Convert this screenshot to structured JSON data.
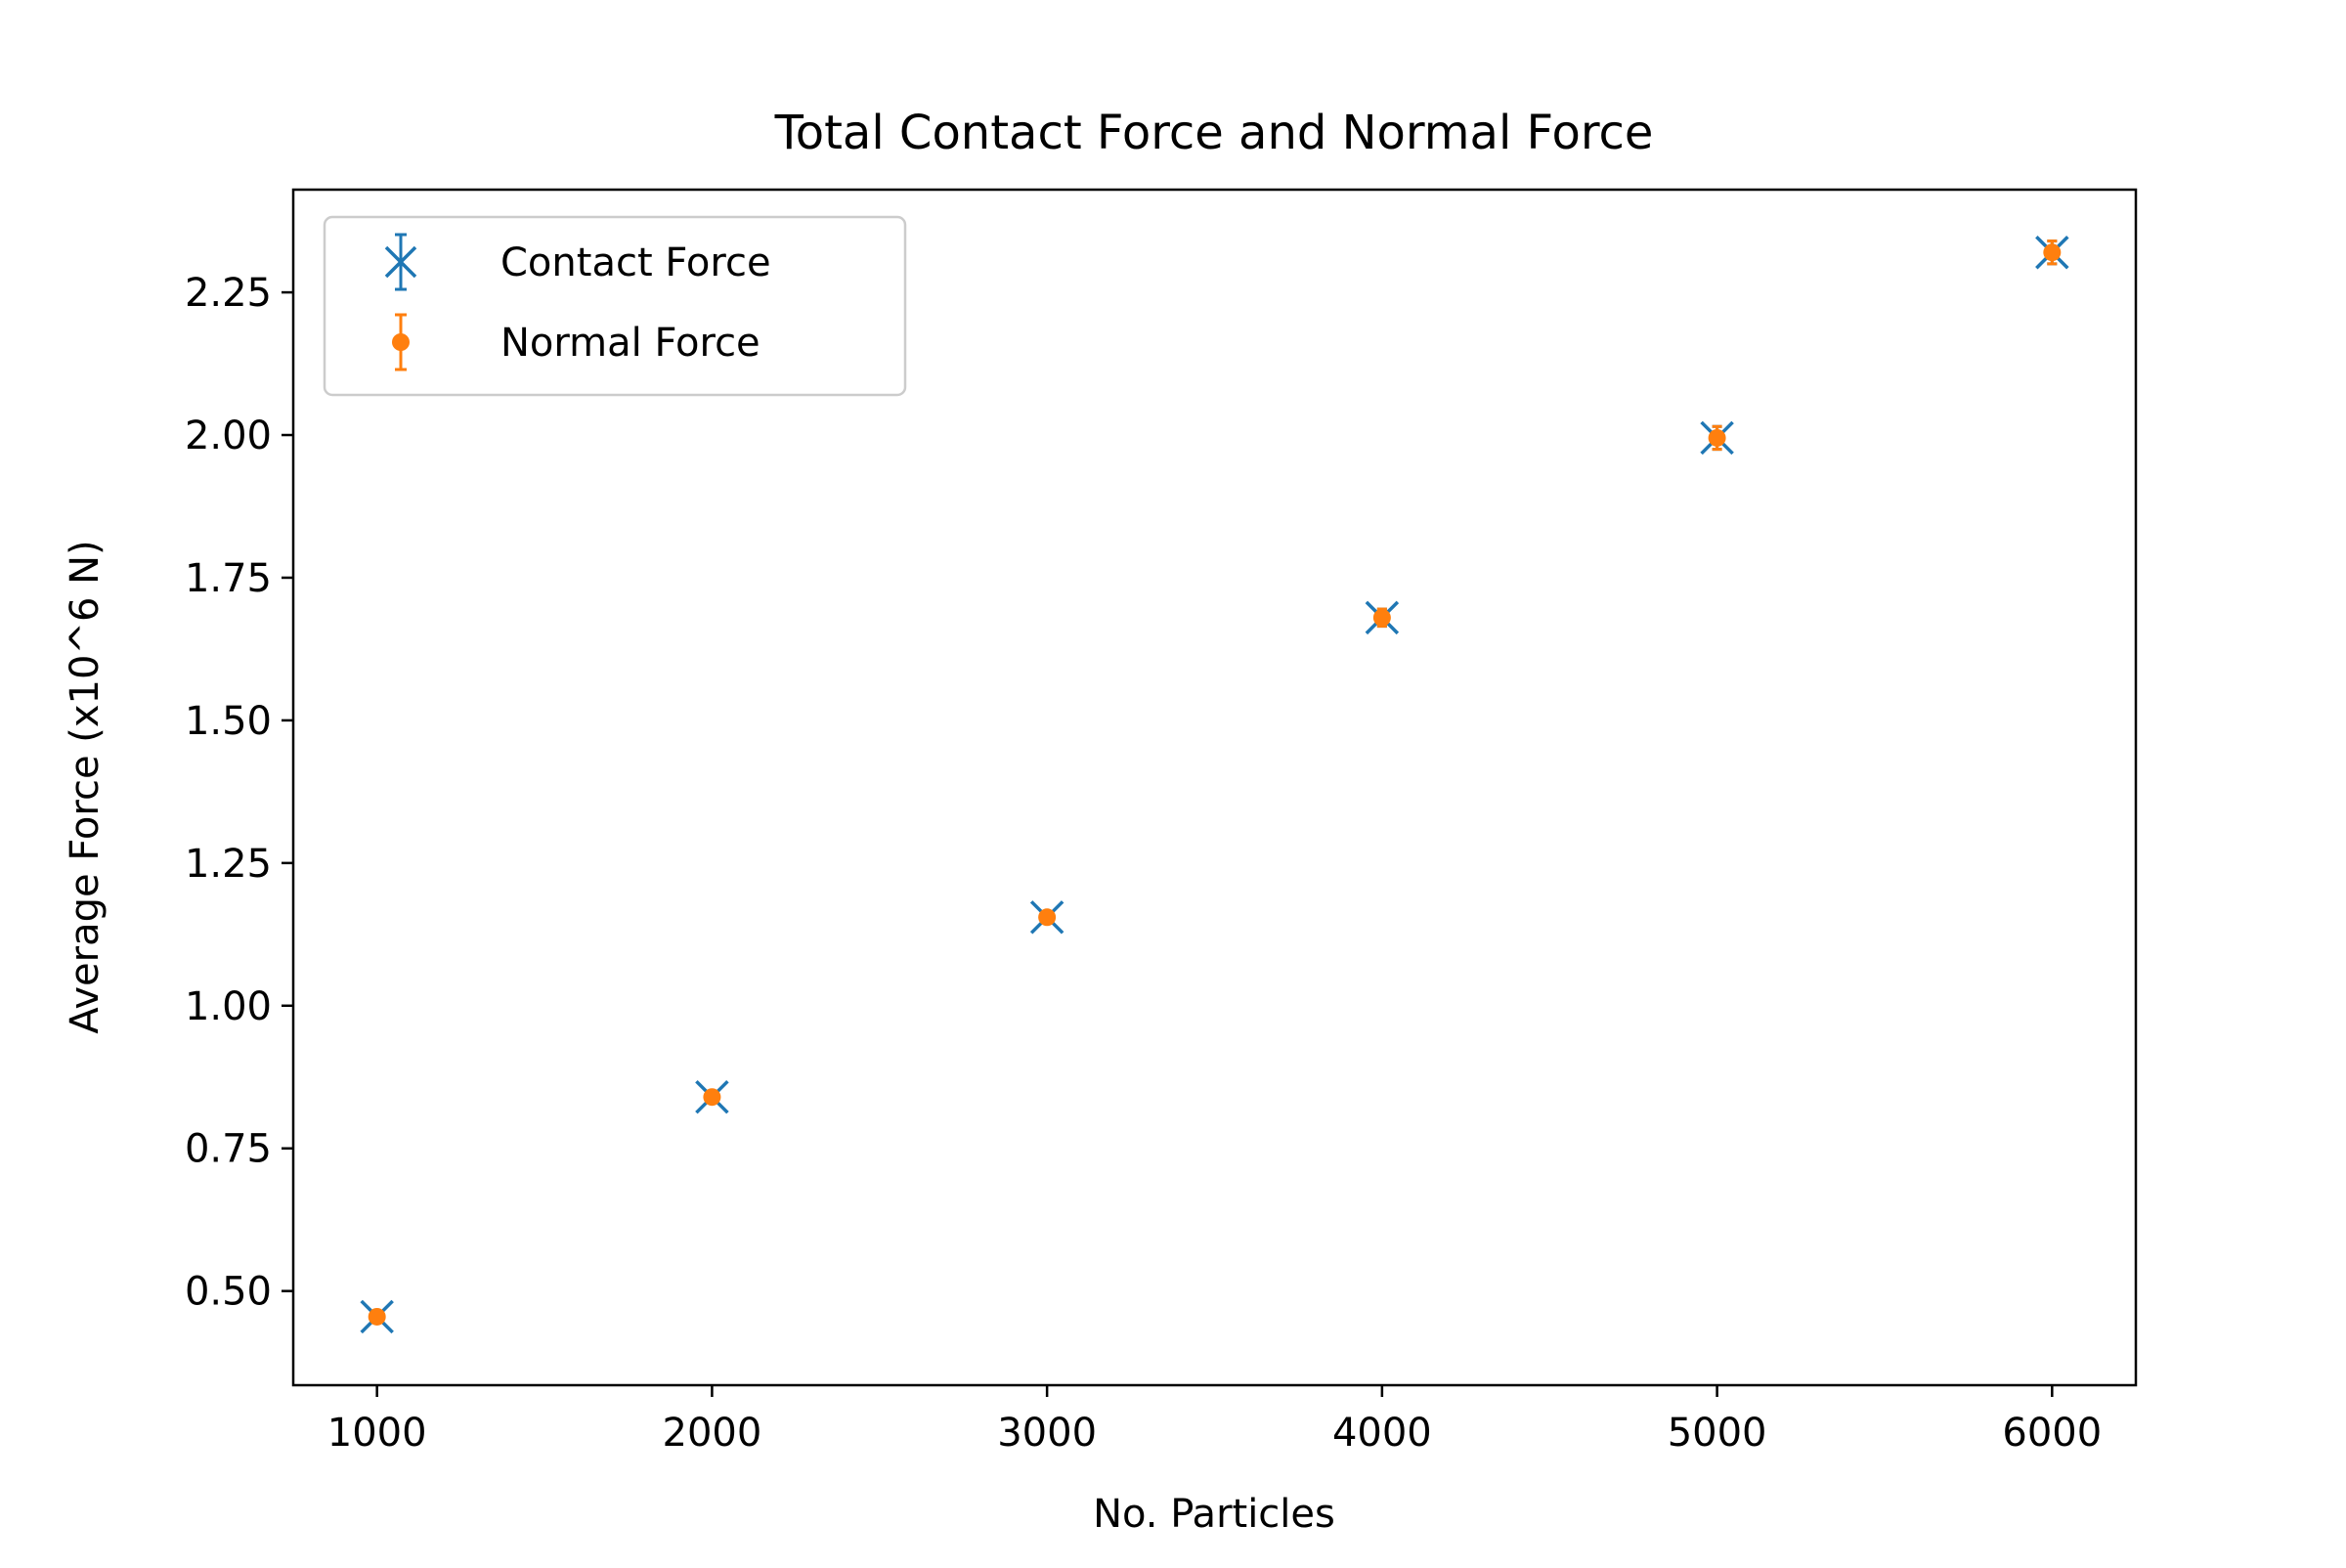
{
  "chart_data": {
    "type": "scatter",
    "title": "Total Contact Force and Normal Force",
    "xlabel": "No. Particles",
    "ylabel": "Average Force (x10^6 N)",
    "xlim": [
      750,
      6250
    ],
    "ylim": [
      0.335,
      2.43
    ],
    "xticks": [
      1000,
      2000,
      3000,
      4000,
      5000,
      6000
    ],
    "yticks": [
      0.5,
      0.75,
      1.0,
      1.25,
      1.5,
      1.75,
      2.0,
      2.25
    ],
    "xtick_labels": [
      "1000",
      "2000",
      "3000",
      "4000",
      "5000",
      "6000"
    ],
    "ytick_labels": [
      "0.50",
      "0.75",
      "1.00",
      "1.25",
      "1.50",
      "1.75",
      "2.00",
      "2.25"
    ],
    "grid": false,
    "legend": "top-left",
    "series": [
      {
        "name": "Contact Force",
        "marker": "x",
        "color": "#1f77b4",
        "x": [
          1000,
          2000,
          3000,
          4000,
          5000,
          6000
        ],
        "y": [
          0.455,
          0.84,
          1.155,
          1.68,
          1.995,
          2.32
        ],
        "yerr": [
          0.01,
          0.01,
          0.01,
          0.015,
          0.02,
          0.02
        ]
      },
      {
        "name": "Normal Force",
        "marker": "o",
        "color": "#ff7f0e",
        "x": [
          1000,
          2000,
          3000,
          4000,
          5000,
          6000
        ],
        "y": [
          0.455,
          0.84,
          1.155,
          1.68,
          1.995,
          2.32
        ],
        "yerr": [
          0.01,
          0.01,
          0.01,
          0.015,
          0.02,
          0.02
        ]
      }
    ]
  }
}
